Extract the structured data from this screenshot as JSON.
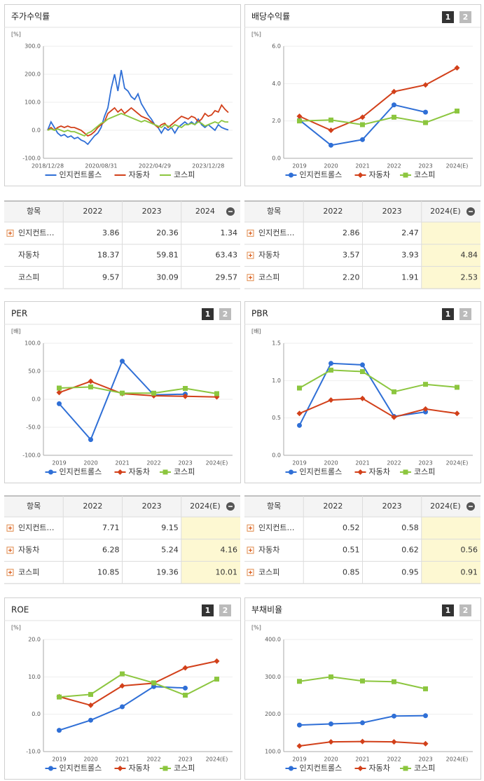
{
  "chart_data": [
    {
      "type": "line",
      "title": "주가수익률",
      "unit": "[%]",
      "categories": [
        "2018/12/28",
        null,
        null,
        null,
        null,
        null,
        null,
        null,
        null,
        null,
        null,
        null,
        null,
        null,
        null,
        null,
        "2020/08/31",
        null,
        null,
        null,
        null,
        null,
        null,
        null,
        null,
        null,
        null,
        null,
        null,
        null,
        null,
        null,
        "2022/04/29",
        null,
        null,
        null,
        null,
        null,
        null,
        null,
        null,
        null,
        null,
        null,
        null,
        null,
        null,
        null,
        "2023/12/28",
        null,
        null,
        null,
        null,
        null,
        null
      ],
      "series": [
        {
          "name": "인지컨트롤스",
          "color": "#2f6fd6",
          "values": [
            0,
            30,
            10,
            -10,
            -20,
            -15,
            -25,
            -20,
            -30,
            -25,
            -35,
            -40,
            -50,
            -35,
            -20,
            -10,
            10,
            50,
            80,
            150,
            200,
            140,
            215,
            150,
            140,
            120,
            110,
            130,
            95,
            75,
            55,
            40,
            20,
            10,
            -10,
            10,
            0,
            10,
            -10,
            10,
            20,
            30,
            20,
            30,
            20,
            40,
            20,
            10,
            20,
            10,
            0,
            20,
            10,
            5,
            1.34
          ]
        },
        {
          "name": "자동차",
          "color": "#d2401a",
          "values": [
            0,
            10,
            0,
            10,
            15,
            10,
            15,
            10,
            10,
            5,
            0,
            -10,
            -20,
            -15,
            -5,
            10,
            20,
            30,
            60,
            70,
            80,
            65,
            75,
            60,
            70,
            80,
            70,
            60,
            50,
            45,
            40,
            30,
            20,
            10,
            20,
            25,
            10,
            20,
            30,
            40,
            50,
            45,
            40,
            50,
            45,
            30,
            40,
            60,
            50,
            55,
            70,
            65,
            90,
            75,
            63.43
          ]
        },
        {
          "name": "코스피",
          "color": "#8cc63f",
          "values": [
            0,
            5,
            0,
            5,
            0,
            -5,
            0,
            -5,
            -5,
            -10,
            -15,
            -20,
            -10,
            -5,
            5,
            15,
            25,
            30,
            40,
            45,
            50,
            55,
            60,
            55,
            50,
            45,
            40,
            35,
            30,
            35,
            30,
            25,
            20,
            15,
            10,
            20,
            15,
            10,
            20,
            15,
            10,
            20,
            20,
            25,
            20,
            30,
            25,
            15,
            20,
            25,
            30,
            25,
            35,
            30,
            29.57
          ]
        }
      ],
      "ylim": [
        -100,
        300
      ],
      "yticks": [
        {
          "value": -100,
          "label": "-100.0"
        },
        {
          "value": 0,
          "label": "0.0"
        },
        {
          "value": 100,
          "label": "100.0"
        },
        {
          "value": 200,
          "label": "200.0"
        },
        {
          "value": 300,
          "label": "300.0"
        }
      ]
    },
    {
      "type": "line",
      "title": "배당수익률",
      "unit": "[%]",
      "buttons": [
        "1",
        "2"
      ],
      "categories": [
        "2019",
        "2020",
        "2021",
        "2022",
        "2023",
        "2024(E)"
      ],
      "series": [
        {
          "name": "인지컨트롤스",
          "color": "#2f6fd6",
          "marker": "circle",
          "values": [
            2.05,
            0.7,
            1.0,
            2.86,
            2.47,
            null
          ]
        },
        {
          "name": "자동차",
          "color": "#d2401a",
          "marker": "diamond",
          "values": [
            2.25,
            1.5,
            2.2,
            3.57,
            3.93,
            4.84
          ]
        },
        {
          "name": "코스피",
          "color": "#8cc63f",
          "marker": "square",
          "values": [
            2.0,
            2.05,
            1.8,
            2.2,
            1.91,
            2.53
          ]
        }
      ],
      "ylim": [
        0,
        6
      ],
      "yticks": [
        {
          "value": 0,
          "label": "0.0"
        },
        {
          "value": 2,
          "label": "2.0"
        },
        {
          "value": 4,
          "label": "4.0"
        },
        {
          "value": 6,
          "label": "6.0"
        }
      ]
    },
    {
      "type": "line",
      "title": "PER",
      "unit": "[배]",
      "buttons": [
        "1",
        "2"
      ],
      "categories": [
        "2019",
        "2020",
        "2021",
        "2022",
        "2023",
        "2024(E)"
      ],
      "series": [
        {
          "name": "인지컨트롤스",
          "color": "#2f6fd6",
          "marker": "circle",
          "values": [
            -8,
            -72,
            68,
            7.71,
            9.15,
            null
          ]
        },
        {
          "name": "자동차",
          "color": "#d2401a",
          "marker": "diamond",
          "values": [
            12,
            32,
            10,
            6.28,
            5.24,
            4.16
          ]
        },
        {
          "name": "코스피",
          "color": "#8cc63f",
          "marker": "square",
          "values": [
            20,
            22,
            11,
            10.85,
            19.36,
            10.01
          ]
        }
      ],
      "ylim": [
        -100,
        100
      ],
      "yticks": [
        {
          "value": -100,
          "label": "-100.0"
        },
        {
          "value": -50,
          "label": "-50.0"
        },
        {
          "value": 0,
          "label": "0.0"
        },
        {
          "value": 50,
          "label": "50.0"
        },
        {
          "value": 100,
          "label": "100.0"
        }
      ]
    },
    {
      "type": "line",
      "title": "PBR",
      "unit": "[배]",
      "buttons": [
        "1",
        "2"
      ],
      "categories": [
        "2019",
        "2020",
        "2021",
        "2022",
        "2023",
        "2024(E)"
      ],
      "series": [
        {
          "name": "인지컨트롤스",
          "color": "#2f6fd6",
          "marker": "circle",
          "values": [
            0.4,
            1.23,
            1.21,
            0.52,
            0.58,
            null
          ]
        },
        {
          "name": "자동차",
          "color": "#d2401a",
          "marker": "diamond",
          "values": [
            0.56,
            0.74,
            0.76,
            0.51,
            0.62,
            0.56
          ]
        },
        {
          "name": "코스피",
          "color": "#8cc63f",
          "marker": "square",
          "values": [
            0.9,
            1.14,
            1.12,
            0.85,
            0.95,
            0.91
          ]
        }
      ],
      "ylim": [
        0,
        1.5
      ],
      "yticks": [
        {
          "value": 0,
          "label": "0.0"
        },
        {
          "value": 0.5,
          "label": "0.5"
        },
        {
          "value": 1,
          "label": "1.0"
        },
        1.5
      ]
    },
    {
      "type": "line",
      "title": "ROE",
      "unit": "[%]",
      "buttons": [
        "1",
        "2"
      ],
      "categories": [
        "2019",
        "2020",
        "2021",
        "2022",
        "2023",
        "2024(E)"
      ],
      "series": [
        {
          "name": "인지컨트롤스",
          "color": "#2f6fd6",
          "marker": "circle",
          "values": [
            -4.3,
            -1.6,
            2.0,
            7.4,
            7.0,
            null
          ]
        },
        {
          "name": "자동차",
          "color": "#d2401a",
          "marker": "diamond",
          "values": [
            4.7,
            2.4,
            7.6,
            8.3,
            12.4,
            14.2
          ]
        },
        {
          "name": "코스피",
          "color": "#8cc63f",
          "marker": "square",
          "values": [
            4.6,
            5.3,
            10.8,
            8.4,
            5.1,
            9.4
          ]
        }
      ],
      "ylim": [
        -10,
        20
      ],
      "yticks": [
        {
          "value": -10,
          "label": "-10.0"
        },
        {
          "value": 0,
          "label": "0.0"
        },
        {
          "value": 10,
          "label": "10.0"
        },
        {
          "value": 20,
          "label": "20.0"
        }
      ]
    },
    {
      "type": "line",
      "title": "부채비율",
      "unit": "[%]",
      "buttons": [
        "1",
        "2"
      ],
      "categories": [
        "2019",
        "2020",
        "2021",
        "2022",
        "2023",
        "2024(E)"
      ],
      "series": [
        {
          "name": "인지컨트롤스",
          "color": "#2f6fd6",
          "marker": "circle",
          "values": [
            171,
            174,
            177,
            195,
            196,
            null
          ]
        },
        {
          "name": "자동차",
          "color": "#d2401a",
          "marker": "diamond",
          "values": [
            115,
            126,
            127,
            126,
            121,
            null
          ]
        },
        {
          "name": "코스피",
          "color": "#8cc63f",
          "marker": "square",
          "values": [
            288,
            300,
            289,
            287,
            268,
            null
          ]
        }
      ],
      "ylim": [
        100,
        400
      ],
      "yticks": [
        {
          "value": 100,
          "label": "100.0"
        },
        {
          "value": 200,
          "label": "200.0"
        },
        {
          "value": 300,
          "label": "300.0"
        },
        {
          "value": 400,
          "label": "400.0"
        }
      ]
    }
  ],
  "tables": [
    {
      "header": [
        "항목",
        "2022",
        "2023",
        "2024"
      ],
      "plus_icon": [
        true,
        false,
        false
      ],
      "highlight_last": false,
      "rows": [
        [
          "인지컨트…",
          "3.86",
          "20.36",
          "1.34"
        ],
        [
          "자동차",
          "18.37",
          "59.81",
          "63.43"
        ],
        [
          "코스피",
          "9.57",
          "30.09",
          "29.57"
        ]
      ]
    },
    {
      "header": [
        "항목",
        "2022",
        "2023",
        "2024(E)"
      ],
      "plus_icon": [
        true,
        true,
        true
      ],
      "highlight_last": true,
      "rows": [
        [
          "인지컨트…",
          "2.86",
          "2.47",
          null
        ],
        [
          "자동차",
          "3.57",
          "3.93",
          "4.84"
        ],
        [
          "코스피",
          "2.20",
          "1.91",
          "2.53"
        ]
      ]
    },
    {
      "header": [
        "항목",
        "2022",
        "2023",
        "2024(E)"
      ],
      "plus_icon": [
        true,
        true,
        true
      ],
      "highlight_last": true,
      "rows": [
        [
          "인지컨트…",
          "7.71",
          "9.15",
          null
        ],
        [
          "자동차",
          "6.28",
          "5.24",
          "4.16"
        ],
        [
          "코스피",
          "10.85",
          "19.36",
          "10.01"
        ]
      ]
    },
    {
      "header": [
        "항목",
        "2022",
        "2023",
        "2024(E)"
      ],
      "plus_icon": [
        true,
        true,
        true
      ],
      "highlight_last": true,
      "rows": [
        [
          "인지컨트…",
          "0.52",
          "0.58",
          null
        ],
        [
          "자동차",
          "0.51",
          "0.62",
          "0.56"
        ],
        [
          "코스피",
          "0.85",
          "0.95",
          "0.91"
        ]
      ]
    }
  ]
}
